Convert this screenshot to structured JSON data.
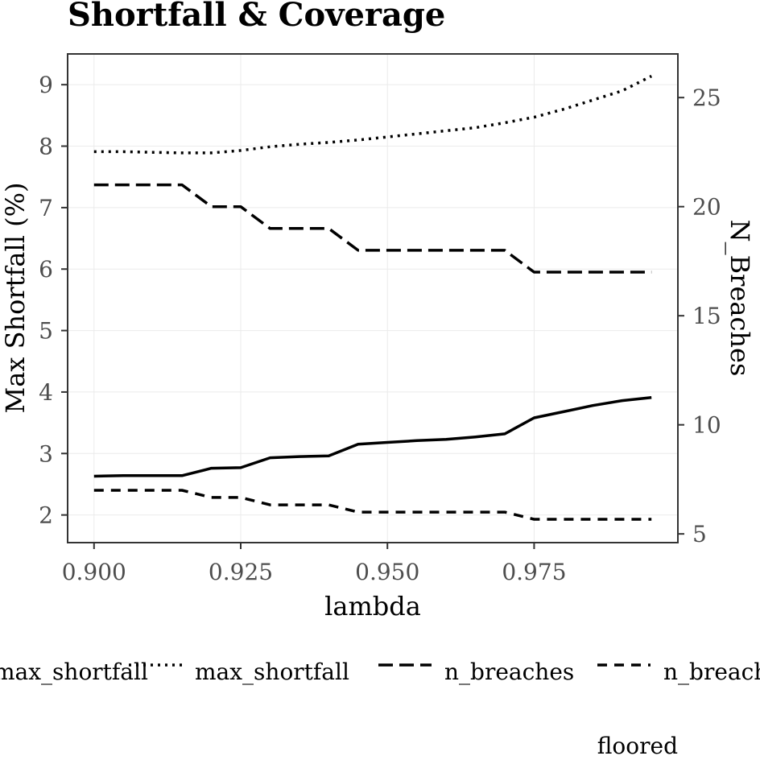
{
  "chart_data": {
    "type": "line",
    "title": "Shortfall & Coverage",
    "xlabel": "lambda",
    "ylabel_left": "Max Shortfall (%)",
    "ylabel_right": "N_Breaches",
    "x": [
      0.9,
      0.905,
      0.91,
      0.915,
      0.92,
      0.925,
      0.93,
      0.935,
      0.94,
      0.945,
      0.95,
      0.955,
      0.96,
      0.965,
      0.97,
      0.975,
      0.98,
      0.985,
      0.99,
      0.995
    ],
    "xlim": [
      0.8955,
      0.9995
    ],
    "ylim_left": [
      1.55,
      9.5
    ],
    "ylim_right": [
      4.6,
      27.0
    ],
    "x_ticks": [
      "0.900",
      "0.925",
      "0.950",
      "0.975"
    ],
    "y_ticks_left": [
      "2",
      "3",
      "4",
      "5",
      "6",
      "7",
      "8",
      "9"
    ],
    "y_ticks_right": [
      "5",
      "10",
      "15",
      "20",
      "25"
    ],
    "grid": true,
    "legend_position": "bottom",
    "series": [
      {
        "name": "max_shortfall",
        "axis": "left",
        "linetype": "solid",
        "values": [
          2.63,
          2.64,
          2.64,
          2.64,
          2.76,
          2.77,
          2.93,
          2.95,
          2.96,
          3.15,
          3.18,
          3.21,
          3.23,
          3.27,
          3.32,
          3.58,
          3.68,
          3.78,
          3.86,
          3.91
        ]
      },
      {
        "name": "max_shortfall",
        "axis": "left",
        "linetype": "dotted",
        "values": [
          7.91,
          7.91,
          7.9,
          7.89,
          7.89,
          7.93,
          7.99,
          8.03,
          8.06,
          8.1,
          8.15,
          8.2,
          8.25,
          8.3,
          8.38,
          8.47,
          8.6,
          8.75,
          8.9,
          9.14
        ]
      },
      {
        "name": "n_breaches",
        "axis": "right",
        "linetype": "longdash",
        "values": [
          21,
          21,
          21,
          21,
          20,
          20,
          19,
          19,
          19,
          18,
          18,
          18,
          18,
          18,
          18,
          17,
          17,
          17,
          17,
          17
        ]
      },
      {
        "name": "n_breaches",
        "axis": "right",
        "linetype": "dashed",
        "values": [
          7,
          7,
          7,
          7,
          6.67,
          6.67,
          6.33,
          6.33,
          6.33,
          6,
          6,
          6,
          6,
          6,
          6,
          5.67,
          5.67,
          5.67,
          5.67,
          5.67
        ]
      }
    ],
    "legend_entries": [
      "max_shortfall",
      "max_shortfall",
      "n_breaches",
      "n_breaches"
    ],
    "annotation": "floored"
  }
}
